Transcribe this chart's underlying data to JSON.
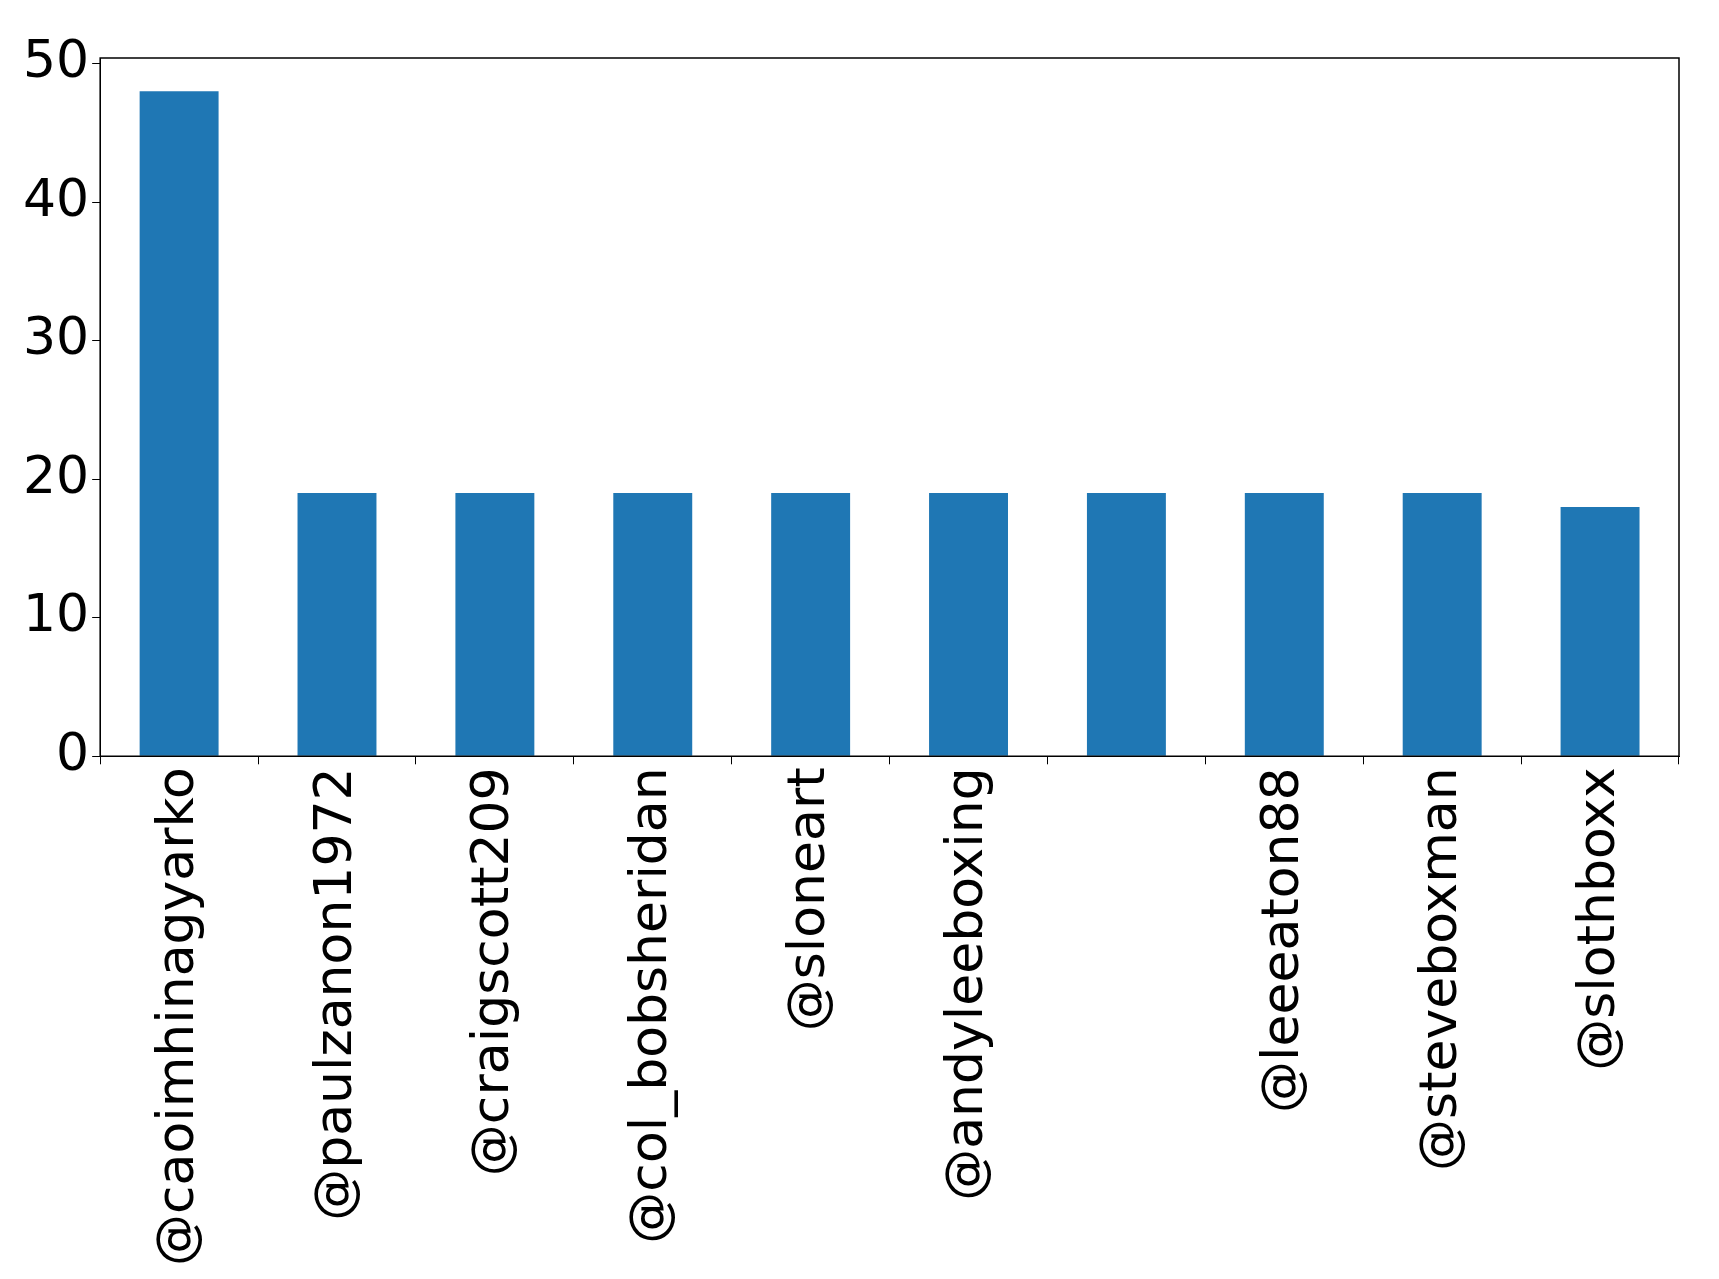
{
  "chart_data": {
    "type": "bar",
    "categories": [
      "@caoimhinagyarko",
      "@paulzanon1972",
      "@craigscott209",
      "@col_bobsheridan",
      "@sloneart",
      "@andyleeboxing",
      null,
      "@leeeaton88",
      "@steveboxman",
      "@slothboxx"
    ],
    "values": [
      48,
      19,
      19,
      19,
      19,
      19,
      19,
      19,
      19,
      18
    ],
    "color": "#1f77b4",
    "ylim": [
      0,
      50.4
    ],
    "yticks": [
      0,
      10,
      20,
      30,
      40,
      50
    ],
    "grid": false,
    "legend": false
  }
}
